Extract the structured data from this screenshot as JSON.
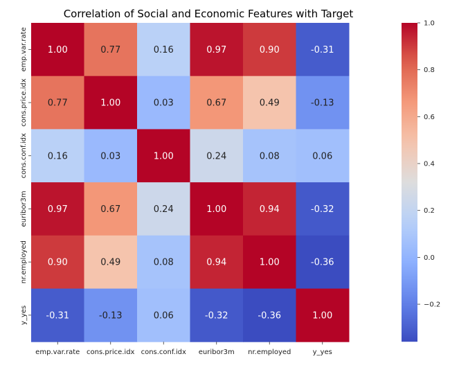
{
  "chart_data": {
    "type": "heatmap",
    "title": "Correlation of Social and Economic Features with Target",
    "xlabel": "",
    "ylabel": "",
    "x_categories": [
      "emp.var.rate",
      "cons.price.idx",
      "cons.conf.idx",
      "euribor3m",
      "nr.employed",
      "y_yes"
    ],
    "y_categories": [
      "emp.var.rate",
      "cons.price.idx",
      "cons.conf.idx",
      "euribor3m",
      "nr.employed",
      "y_yes"
    ],
    "values": [
      [
        1.0,
        0.77,
        0.16,
        0.97,
        0.9,
        -0.31
      ],
      [
        0.77,
        1.0,
        0.03,
        0.67,
        0.49,
        -0.13
      ],
      [
        0.16,
        0.03,
        1.0,
        0.24,
        0.08,
        0.06
      ],
      [
        0.97,
        0.67,
        0.24,
        1.0,
        0.94,
        -0.32
      ],
      [
        0.9,
        0.49,
        0.08,
        0.94,
        1.0,
        -0.36
      ],
      [
        -0.31,
        -0.13,
        0.06,
        -0.32,
        -0.36,
        1.0
      ]
    ],
    "colormap": "coolwarm",
    "color_range": [
      -0.36,
      1.0
    ],
    "colorbar": {
      "position": "right",
      "ticks": [
        -0.2,
        0.0,
        0.2,
        0.4,
        0.6,
        0.8,
        1.0
      ],
      "tick_labels": [
        "−0.2",
        "0.0",
        "0.2",
        "0.4",
        "0.6",
        "0.8",
        "1.0"
      ]
    },
    "annotations": true,
    "grid": false
  }
}
